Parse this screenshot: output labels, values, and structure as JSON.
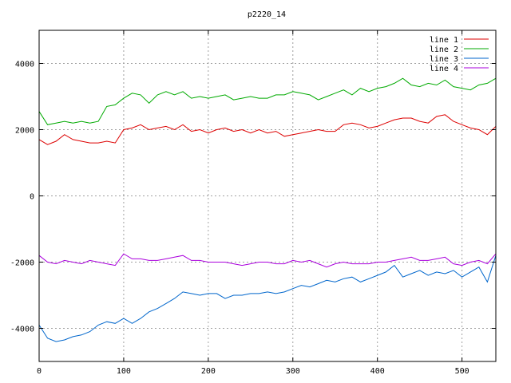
{
  "chart_data": {
    "type": "line",
    "title": "p2220_14",
    "xlabel": "",
    "ylabel": "",
    "xlim": [
      0,
      540
    ],
    "ylim": [
      -5000,
      5000
    ],
    "x_ticks": [
      0,
      100,
      200,
      300,
      400,
      500
    ],
    "y_ticks": [
      -4000,
      -2000,
      0,
      2000,
      4000
    ],
    "grid": true,
    "legend_position": "top-right",
    "x": [
      0,
      10,
      20,
      30,
      40,
      50,
      60,
      70,
      80,
      90,
      100,
      110,
      120,
      130,
      140,
      150,
      160,
      170,
      180,
      190,
      200,
      210,
      220,
      230,
      240,
      250,
      260,
      270,
      280,
      290,
      300,
      310,
      320,
      330,
      340,
      350,
      360,
      370,
      380,
      390,
      400,
      410,
      420,
      430,
      440,
      450,
      460,
      470,
      480,
      490,
      500,
      510,
      520,
      530,
      540
    ],
    "series": [
      {
        "name": "line 1",
        "color": "#dd0000",
        "values": [
          1700,
          1550,
          1650,
          1850,
          1700,
          1650,
          1600,
          1600,
          1650,
          1600,
          2000,
          2050,
          2150,
          2000,
          2050,
          2100,
          2000,
          2150,
          1950,
          2000,
          1900,
          2000,
          2050,
          1950,
          2000,
          1900,
          2000,
          1900,
          1950,
          1800,
          1850,
          1900,
          1950,
          2000,
          1950,
          1950,
          2150,
          2200,
          2150,
          2050,
          2100,
          2200,
          2300,
          2350,
          2350,
          2250,
          2200,
          2400,
          2450,
          2250,
          2150,
          2050,
          2000,
          1850,
          2100
        ]
      },
      {
        "name": "line 2",
        "color": "#00aa00",
        "values": [
          2550,
          2150,
          2200,
          2250,
          2200,
          2250,
          2200,
          2250,
          2700,
          2750,
          2950,
          3100,
          3050,
          2800,
          3050,
          3150,
          3050,
          3150,
          2950,
          3000,
          2950,
          3000,
          3050,
          2900,
          2950,
          3000,
          2950,
          2950,
          3050,
          3050,
          3150,
          3100,
          3050,
          2900,
          3000,
          3100,
          3200,
          3050,
          3250,
          3150,
          3250,
          3300,
          3400,
          3550,
          3350,
          3300,
          3400,
          3350,
          3500,
          3300,
          3250,
          3200,
          3350,
          3400,
          3550
        ]
      },
      {
        "name": "line 3",
        "color": "#0066cc",
        "values": [
          -3900,
          -4300,
          -4400,
          -4350,
          -4250,
          -4200,
          -4100,
          -3900,
          -3800,
          -3850,
          -3700,
          -3850,
          -3700,
          -3500,
          -3400,
          -3250,
          -3100,
          -2900,
          -2950,
          -3000,
          -2950,
          -2950,
          -3100,
          -3000,
          -3000,
          -2950,
          -2950,
          -2900,
          -2950,
          -2900,
          -2800,
          -2700,
          -2750,
          -2650,
          -2550,
          -2600,
          -2500,
          -2450,
          -2600,
          -2500,
          -2400,
          -2300,
          -2100,
          -2450,
          -2350,
          -2250,
          -2400,
          -2300,
          -2350,
          -2250,
          -2450,
          -2300,
          -2150,
          -2600,
          -1800
        ]
      },
      {
        "name": "line 4",
        "color": "#aa00dd",
        "values": [
          -1800,
          -2000,
          -2050,
          -1950,
          -2000,
          -2050,
          -1950,
          -2000,
          -2050,
          -2100,
          -1750,
          -1900,
          -1900,
          -1950,
          -1950,
          -1900,
          -1850,
          -1800,
          -1950,
          -1950,
          -2000,
          -2000,
          -2000,
          -2050,
          -2100,
          -2050,
          -2000,
          -2000,
          -2050,
          -2050,
          -1950,
          -2000,
          -1950,
          -2050,
          -2150,
          -2050,
          -2000,
          -2050,
          -2050,
          -2050,
          -2000,
          -2000,
          -1950,
          -1900,
          -1850,
          -1950,
          -1950,
          -1900,
          -1850,
          -2050,
          -2100,
          -2000,
          -1950,
          -2050,
          -1750
        ]
      }
    ]
  }
}
